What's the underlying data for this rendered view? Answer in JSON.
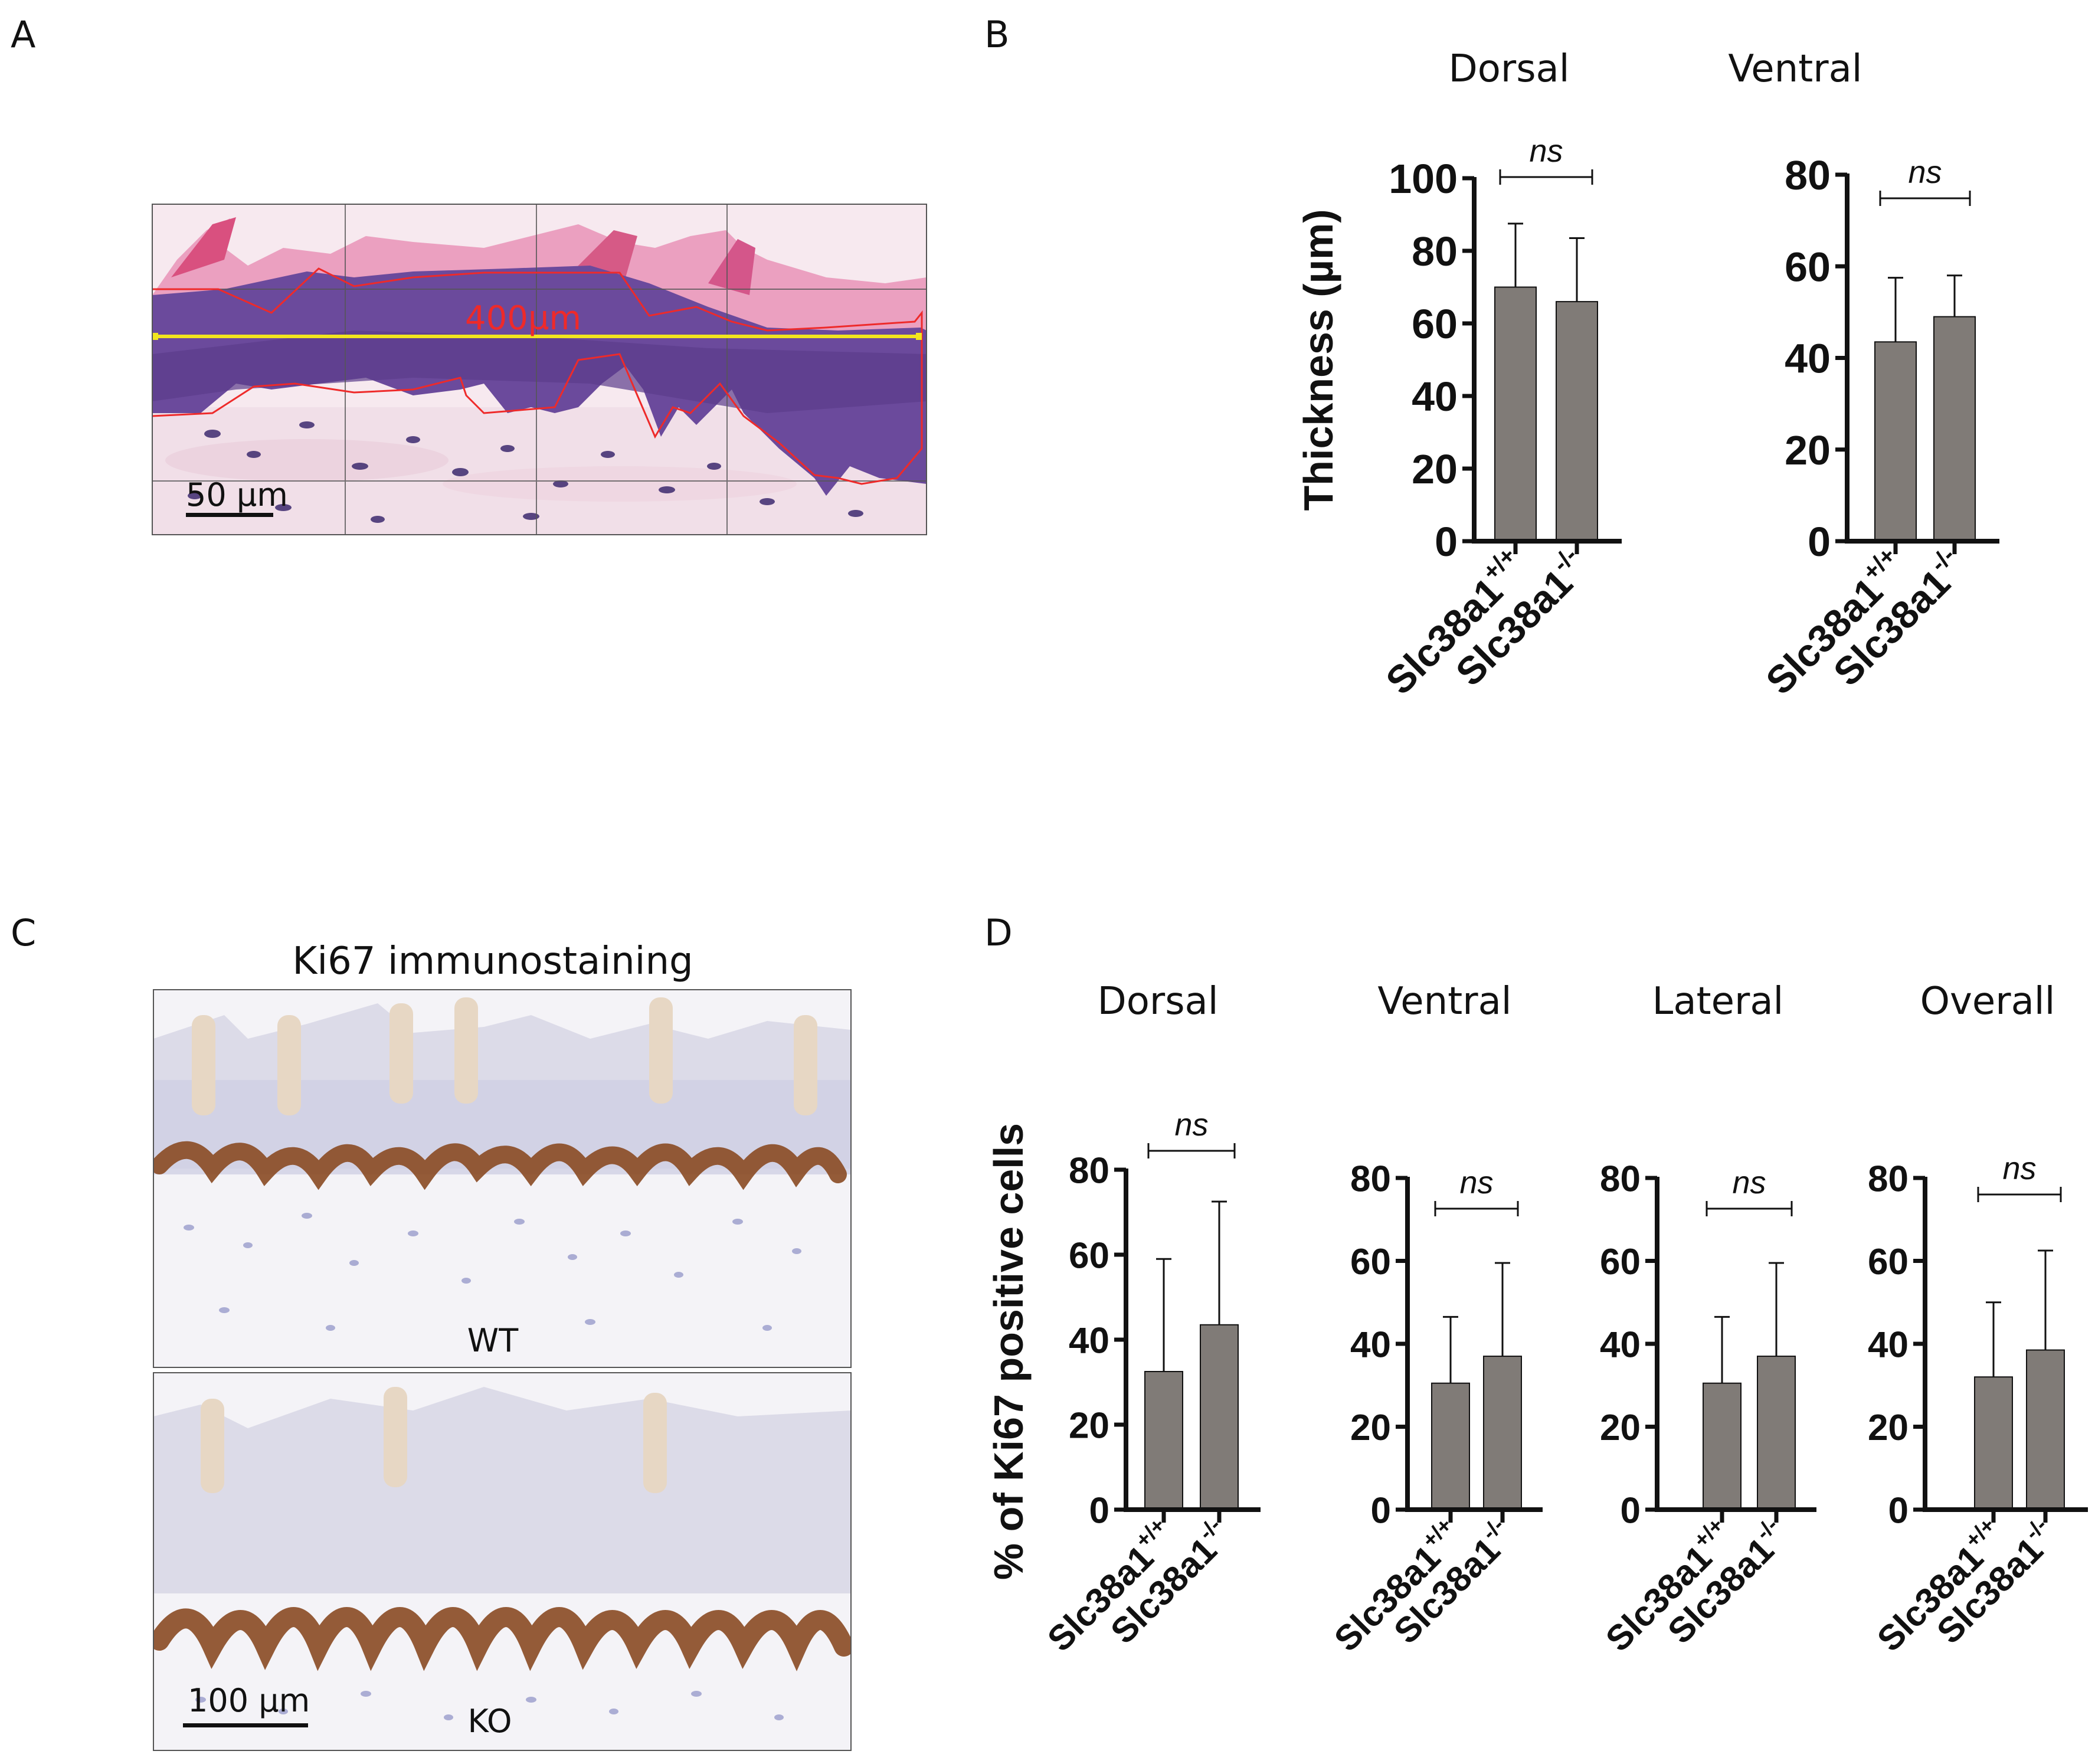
{
  "panels": {
    "A": {
      "letter": "A",
      "measurement_label": "400µm",
      "scale_bar_label": "50 µm"
    },
    "B": {
      "letter": "B"
    },
    "C": {
      "letter": "C",
      "title": "Ki67 immunostaining",
      "top_label": "WT",
      "bottom_label": "KO",
      "scale_bar_label": "100 µm"
    },
    "D": {
      "letter": "D"
    }
  },
  "colors": {
    "bar_fill": "#807b77",
    "axis": "#111111",
    "he_pink": "#e889b0",
    "he_purple": "#5a3d8f",
    "ki67_brown": "#8a4a22",
    "hema_blue": "#8b8fc4",
    "trace_red": "#ee2a2a",
    "measure_yellow": "#f2e51e"
  },
  "chart_data": [
    {
      "id": "B-dorsal",
      "type": "bar",
      "title": "Dorsal",
      "ylabel": "Thickness (µm)",
      "categories": [
        {
          "base": "Slc38a1",
          "sup": "+/+"
        },
        {
          "base": "Slc38a1",
          "sup": "-/-"
        }
      ],
      "values": [
        70,
        66
      ],
      "errors": [
        17.5,
        17.5
      ],
      "ylim": [
        0,
        100
      ],
      "yticks": [
        0,
        20,
        40,
        60,
        80,
        100
      ],
      "significance": "ns"
    },
    {
      "id": "B-ventral",
      "type": "bar",
      "title": "Ventral",
      "ylabel": "",
      "categories": [
        {
          "base": "Slc38a1",
          "sup": "+/+"
        },
        {
          "base": "Slc38a1",
          "sup": "-/-"
        }
      ],
      "values": [
        43.5,
        49
      ],
      "errors": [
        14,
        9
      ],
      "ylim": [
        0,
        80
      ],
      "yticks": [
        0,
        20,
        40,
        60,
        80
      ],
      "significance": "ns"
    },
    {
      "id": "D-dorsal",
      "type": "bar",
      "title": "Dorsal",
      "ylabel": "% of Ki67 positive cells",
      "categories": [
        {
          "base": "Slc38a1",
          "sup": "+/+"
        },
        {
          "base": "Slc38a1",
          "sup": "-/-"
        }
      ],
      "values": [
        32.5,
        43.5
      ],
      "errors": [
        26.5,
        29
      ],
      "ylim": [
        0,
        80
      ],
      "yticks": [
        0,
        20,
        40,
        60,
        80
      ],
      "significance": "ns"
    },
    {
      "id": "D-ventral",
      "type": "bar",
      "title": "Ventral",
      "ylabel": "",
      "categories": [
        {
          "base": "Slc38a1",
          "sup": "+/+"
        },
        {
          "base": "Slc38a1",
          "sup": "-/-"
        }
      ],
      "values": [
        30.5,
        37
      ],
      "errors": [
        16,
        22.5
      ],
      "ylim": [
        0,
        80
      ],
      "yticks": [
        0,
        20,
        40,
        60,
        80
      ],
      "significance": "ns"
    },
    {
      "id": "D-lateral",
      "type": "bar",
      "title": "Lateral",
      "ylabel": "",
      "categories": [
        {
          "base": "Slc38a1",
          "sup": "+/+"
        },
        {
          "base": "Slc38a1",
          "sup": "-/-"
        }
      ],
      "values": [
        30.5,
        37
      ],
      "errors": [
        16,
        22.5
      ],
      "ylim": [
        0,
        80
      ],
      "yticks": [
        0,
        20,
        40,
        60,
        80
      ],
      "significance": "ns"
    },
    {
      "id": "D-overall",
      "type": "bar",
      "title": "Overall",
      "ylabel": "",
      "categories": [
        {
          "base": "Slc38a1",
          "sup": "+/+"
        },
        {
          "base": "Slc38a1",
          "sup": "-/-"
        }
      ],
      "values": [
        32,
        38.5
      ],
      "errors": [
        18,
        24
      ],
      "ylim": [
        0,
        80
      ],
      "yticks": [
        0,
        20,
        40,
        60,
        80
      ],
      "significance": "ns"
    }
  ]
}
